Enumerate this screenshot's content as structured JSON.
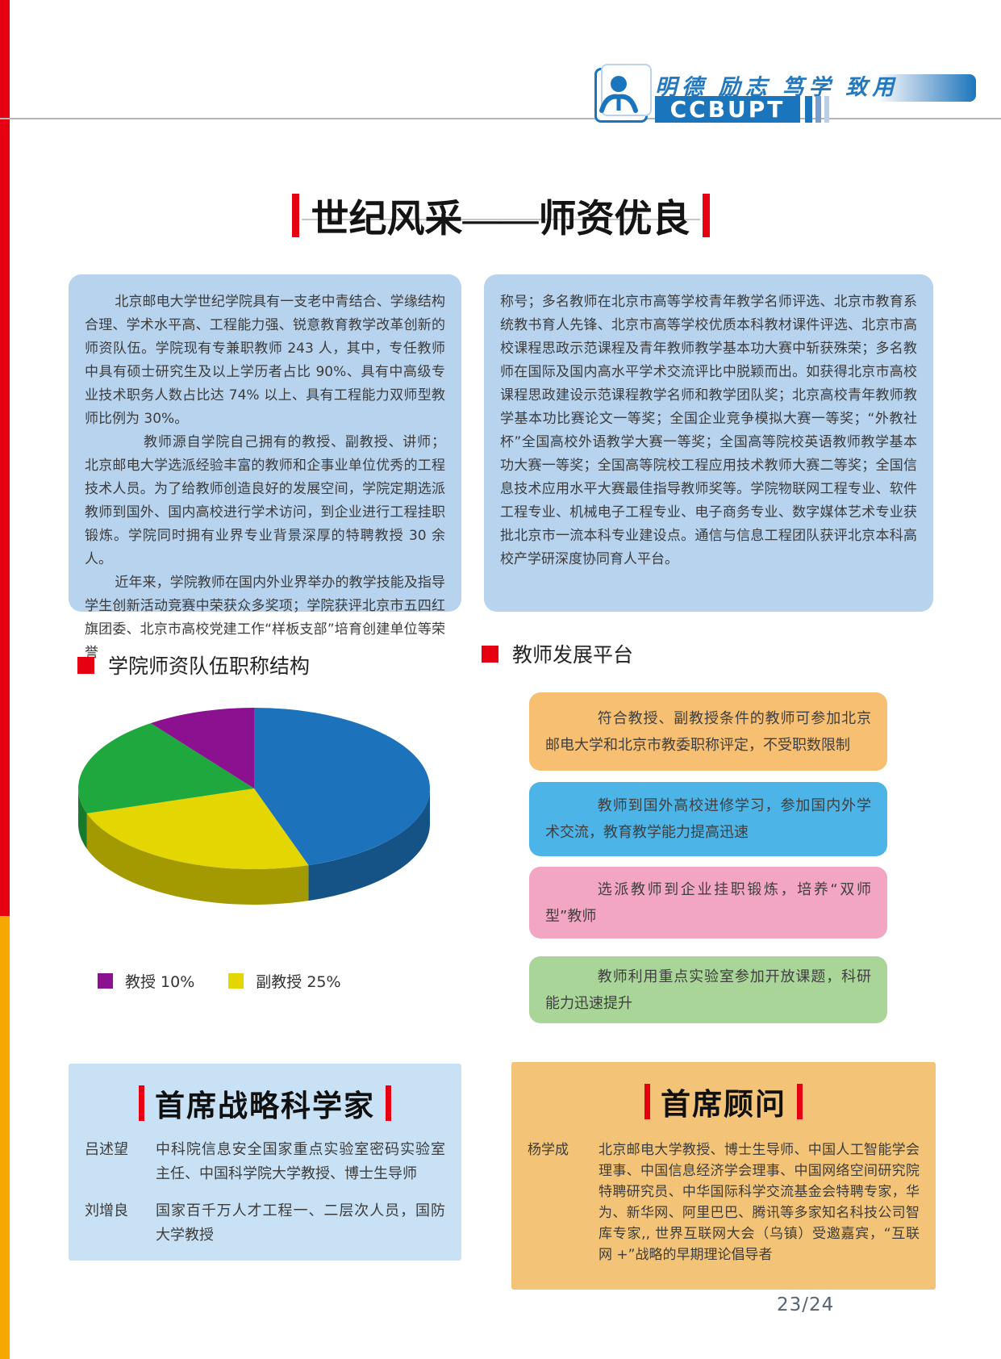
{
  "colors": {
    "accent_red": "#e60012",
    "brand_blue": "#1b75bc",
    "edge_orange": "#f6a800",
    "intro_block_bg": "#b7d3ee",
    "bottom_left_bg": "#c9e1f4",
    "bottom_right_bg": "#f3c478"
  },
  "header": {
    "motto": "明德 励志 笃学 致用",
    "logo_text": "CCBUPT"
  },
  "title": {
    "text": "世纪风采——师资优良"
  },
  "intro": {
    "left_paragraphs": [
      "北京邮电大学世纪学院具有一支老中青结合、学缘结构合理、学术水平高、工程能力强、锐意教育教学改革创新的师资队伍。学院现有专兼职教师 243 人，其中，专任教师中具有硕士研究生及以上学历者占比 90%、具有中高级专业技术职务人数占比达 74% 以上、具有工程能力双师型教师比例为 30%。",
      "教师源自学院自己拥有的教授、副教授、讲师；北京邮电大学选派经验丰富的教师和企事业单位优秀的工程技术人员。为了给教师创造良好的发展空间，学院定期选派教师到国外、国内高校进行学术访问，到企业进行工程挂职锻炼。学院同时拥有业界专业背景深厚的特聘教授 30 余人。",
      "近年来，学院教师在国内外业界举办的教学技能及指导学生创新活动竞赛中荣获众多奖项；学院获评北京市五四红旗团委、北京市高校党建工作“样板支部”培育创建单位等荣誉"
    ],
    "right_paragraph": "称号；多名教师在北京市高等学校青年教学名师评选、北京市教育系统教书育人先锋、北京市高等学校优质本科教材课件评选、北京市高校课程思政示范课程及青年教师教学基本功大赛中斩获殊荣；多名教师在国际及国内高水平学术交流评比中脱颖而出。如获得北京市高校课程思政建设示范课程教学名师和教学团队奖；北京高校青年教师教学基本功比赛论文一等奖；全国企业竞争模拟大赛一等奖；“外教社杯”全国高校外语教学大赛一等奖；全国高等院校英语教师教学基本功大赛一等奖；全国高等院校工程应用技术教师大赛二等奖；全国信息技术应用水平大赛最佳指导教师奖等。学院物联网工程专业、软件工程专业、机械电子工程专业、电子商务专业、数字媒体艺术专业获批北京市一流本科专业建设点。通信与信息工程团队获评北京本科高校产学研深度协同育人平台。"
  },
  "sections": {
    "pie_heading": "学院师资队伍职称结构",
    "platform_heading": "教师发展平台"
  },
  "chart_data": {
    "type": "pie",
    "style": "3d",
    "title": "学院师资队伍职称结构",
    "start_angle_deg": 0,
    "direction": "clockwise",
    "slices": [
      {
        "label": "",
        "value": 45,
        "color": "#1d73bb"
      },
      {
        "label": "副教授",
        "value": 25,
        "color": "#e3d603"
      },
      {
        "label": "",
        "value": 20,
        "color": "#1ea83d"
      },
      {
        "label": "教授",
        "value": 10,
        "color": "#8c1191"
      }
    ],
    "legend": [
      {
        "label": "教授 10%",
        "color": "#8c1191"
      },
      {
        "label": "副教授 25%",
        "color": "#e3d603"
      }
    ],
    "legend_position": "bottom-left"
  },
  "platform_boxes": [
    {
      "text": "符合教授、副教授条件的教师可参加北京邮电大学和北京市教委职称评定，不受职数限制",
      "color": "#f6bf72"
    },
    {
      "text": "教师到国外高校进修学习，参加国内外学术交流，教育教学能力提高迅速",
      "color": "#4cb4e7"
    },
    {
      "text": "选派教师到企业挂职锻炼，培养“双师型”教师",
      "color": "#f2a6c3"
    },
    {
      "text": "教师利用重点实验室参加开放课题，科研能力迅速提升",
      "color": "#a9d698"
    }
  ],
  "scientists": {
    "title": "首席战略科学家",
    "entries": [
      {
        "name": "吕述望",
        "desc": "中科院信息安全国家重点实验室密码实验室主任、中国科学院大学教授、博士生导师"
      },
      {
        "name": "刘增良",
        "desc": "国家百千万人才工程一、二层次人员，国防大学教授"
      }
    ]
  },
  "advisors": {
    "title": "首席顾问",
    "entries": [
      {
        "name": "杨学成",
        "desc": "北京邮电大学教授、博士生导师、中国人工智能学会理事、中国信息经济学会理事、中国网络空间研究院特聘研究员、中华国际科学交流基金会特聘专家，华为、新华网、阿里巴巴、腾讯等多家知名科技公司智库专家,, 世界互联网大会（乌镇）受邀嘉宾，“互联网 +”战略的早期理论倡导者"
      }
    ]
  },
  "page": {
    "number": "23/24"
  }
}
